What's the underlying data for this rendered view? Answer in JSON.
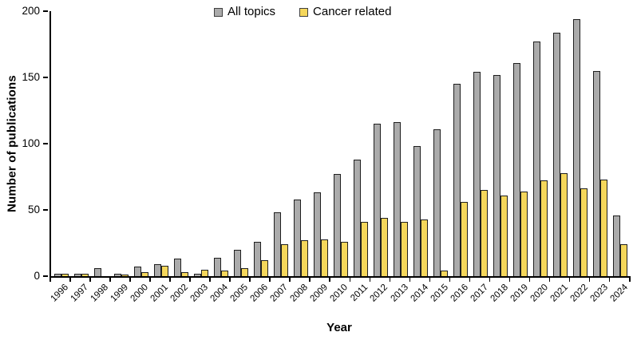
{
  "chart_data": {
    "type": "bar",
    "title": "",
    "xlabel": "Year",
    "ylabel": "Number of publications",
    "ylim": [
      0,
      200
    ],
    "yticks": [
      0,
      50,
      100,
      150,
      200
    ],
    "grid": false,
    "legend_position": "top-center",
    "categories": [
      "1996",
      "1997",
      "1998",
      "1999",
      "2000",
      "2001",
      "2002",
      "2003",
      "2004",
      "2005",
      "2006",
      "2007",
      "2008",
      "2009",
      "2010",
      "2011",
      "2012",
      "2013",
      "2014",
      "2015",
      "2016",
      "2017",
      "2018",
      "2019",
      "2020",
      "2021",
      "2022",
      "2023",
      "2024"
    ],
    "series": [
      {
        "name": "All topics",
        "color": "#ABABAB",
        "border_color": "#1f1f1f",
        "values": [
          2,
          2,
          6,
          2,
          7,
          9,
          13,
          2,
          14,
          20,
          26,
          48,
          58,
          63,
          77,
          88,
          115,
          116,
          98,
          111,
          145,
          154,
          152,
          161,
          177,
          184,
          194,
          155,
          46
        ]
      },
      {
        "name": "Cancer related",
        "color": "#F5D75B",
        "border_color": "#1f1f1f",
        "values": [
          2,
          2,
          0,
          1,
          3,
          8,
          3,
          5,
          4,
          6,
          12,
          24,
          27,
          28,
          26,
          41,
          44,
          41,
          43,
          4,
          56,
          65,
          61,
          64,
          72,
          78,
          66,
          73,
          24
        ]
      }
    ]
  },
  "colors": {
    "axis": "#000000",
    "background": "#ffffff",
    "text": "#000000"
  }
}
